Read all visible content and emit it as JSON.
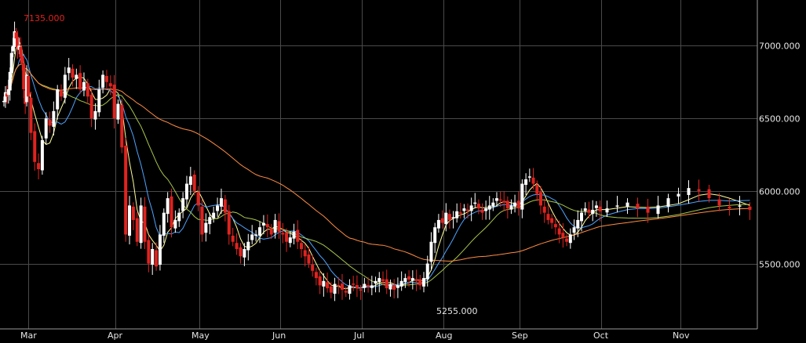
{
  "chart_data": {
    "type": "candlestick",
    "x_tick_labels": [
      "Mar",
      "Apr",
      "May",
      "Jun",
      "Jul",
      "Aug",
      "Sep",
      "Oct",
      "Nov"
    ],
    "y_tick_labels": [
      "7000.000",
      "6500.000",
      "6000.000",
      "5500.000"
    ],
    "y_ticks": [
      7000,
      6500,
      6000,
      5500
    ],
    "ylim": [
      5050,
      7315
    ],
    "grid": true,
    "annotations": {
      "high": {
        "label": "7135.000",
        "value": 7135
      },
      "low": {
        "label": "5255.000",
        "value": 5255
      }
    },
    "colors": {
      "background": "#000000",
      "grid": "#4a4a4a",
      "up_candle": "#ffffff",
      "down_candle": "#e0231f",
      "ma_5": "#ffff99",
      "ma_10": "#4da3ff",
      "ma_20": "#a8c64a",
      "ma_60": "#ff8c42"
    },
    "months": [
      {
        "label": "Mar",
        "closes": [
          6620,
          6680,
          6650,
          6700,
          6820,
          6950,
          7000,
          7100,
          7050,
          6980,
          7000,
          6920,
          6880,
          6700,
          6600,
          6800,
          6650
        ]
      },
      {
        "label": "Apr",
        "closes": [
          6400,
          6200,
          6150,
          6350,
          6500,
          6450,
          6550,
          6700,
          6650,
          6800,
          6850,
          6780,
          6800,
          6700,
          6750,
          6650,
          6500,
          6550,
          6700,
          6800,
          6750,
          6720,
          6500
        ]
      },
      {
        "label": "May",
        "closes": [
          6600,
          6300,
          5700,
          5900,
          5800,
          5650,
          5900,
          5650,
          5500,
          5600,
          5480,
          5700,
          5850,
          5950,
          5750,
          5800,
          5850,
          5950,
          6050,
          6100,
          6000,
          5900
        ]
      },
      {
        "label": "Jun",
        "closes": [
          5700,
          5780,
          5820,
          5850,
          5900,
          5950,
          5850,
          5700,
          5650,
          5600,
          5550,
          5600,
          5650,
          5700,
          5700,
          5750,
          5780,
          5750,
          5700,
          5800,
          5720
        ]
      },
      {
        "label": "Jul",
        "closes": [
          5700,
          5650,
          5680,
          5720,
          5650,
          5600,
          5550,
          5500,
          5450,
          5400,
          5350,
          5380,
          5330,
          5300,
          5360,
          5350,
          5320,
          5300,
          5350,
          5360,
          5330,
          5320
        ]
      },
      {
        "label": "Aug",
        "closes": [
          5360,
          5340,
          5350,
          5380,
          5400,
          5380,
          5330,
          5360,
          5320,
          5350,
          5380,
          5400,
          5390,
          5400,
          5380,
          5350,
          5400,
          5500,
          5650,
          5750,
          5800,
          5780
        ]
      },
      {
        "label": "Sep",
        "closes": [
          5850,
          5800,
          5820,
          5860,
          5850,
          5880,
          5870,
          5900,
          5920,
          5880,
          5850,
          5880,
          5900,
          5920,
          5950,
          5940,
          5920,
          5880,
          5900,
          5920,
          5880
        ]
      },
      {
        "label": "Oct",
        "closes": [
          6050,
          6080,
          6100,
          6050,
          5980,
          5900,
          5850,
          5800,
          5780,
          5750,
          5700,
          5680,
          5650,
          5700,
          5750,
          5800,
          5850,
          5880,
          5850,
          5870,
          5900,
          5860
        ]
      },
      {
        "label": "Nov",
        "closes": [
          5880,
          5900,
          5920,
          5880,
          5850,
          5900,
          5950,
          5980,
          6020,
          6000,
          5950,
          5900,
          5880,
          5900,
          5870
        ]
      }
    ],
    "moving_averages": [
      {
        "period": 5
      },
      {
        "period": 10
      },
      {
        "period": 20
      },
      {
        "period": 60
      }
    ]
  }
}
